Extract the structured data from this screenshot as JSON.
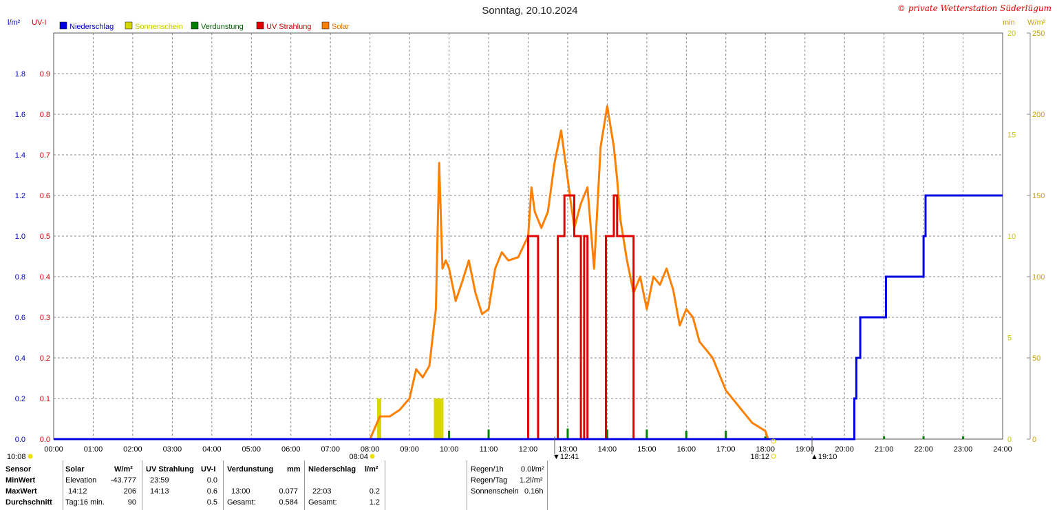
{
  "title": "Sonntag, 20.10.2024",
  "credit": "© private Wetterstation Süderlügum",
  "axis_units": {
    "left1": "l/m²",
    "left2": "UV-I",
    "right1": "min",
    "right2": "W/m²"
  },
  "legend": [
    {
      "label": "Niederschlag",
      "color": "#0000e0",
      "text_color": "#0000c0"
    },
    {
      "label": "Sonnenschein",
      "color": "#d8d800",
      "text_color": "#c8c800"
    },
    {
      "label": "Verdunstung",
      "color": "#008000",
      "text_color": "#006000"
    },
    {
      "label": "UV Strahlung",
      "color": "#e00000",
      "text_color": "#d00000"
    },
    {
      "label": "Solar",
      "color": "#ff8000",
      "text_color": "#e07000"
    }
  ],
  "colors": {
    "rain": "#0000e0",
    "sun": "#d8d800",
    "evap": "#008000",
    "uv": "#e00000",
    "solar": "#ff8000",
    "grid": "#888888"
  },
  "events": {
    "moonrise": "10:08",
    "sunrise": "08:04",
    "solar_noon": "12:41",
    "sunset": "18:12",
    "moonset": "19:10"
  },
  "chart_data": {
    "type": "line",
    "title": "Sonntag, 20.10.2024",
    "x_ticks": [
      "00:00",
      "01:00",
      "02:00",
      "03:00",
      "04:00",
      "05:00",
      "06:00",
      "07:00",
      "08:00",
      "09:00",
      "10:00",
      "11:00",
      "12:00",
      "13:00",
      "14:00",
      "15:00",
      "16:00",
      "17:00",
      "18:00",
      "19:00",
      "20:00",
      "21:00",
      "22:00",
      "23:00",
      "24:00"
    ],
    "axes": {
      "rain_lm2": {
        "range": [
          0,
          2.0
        ],
        "ticks": [
          "0.0",
          "0.2",
          "0.4",
          "0.6",
          "0.8",
          "1.0",
          "1.2",
          "1.4",
          "1.6",
          "1.8"
        ]
      },
      "uv_index": {
        "range": [
          0,
          1.0
        ],
        "ticks": [
          "0.0",
          "0.1",
          "0.2",
          "0.3",
          "0.4",
          "0.5",
          "0.6",
          "0.7",
          "0.8",
          "0.9"
        ]
      },
      "sunshine_min": {
        "range": [
          0,
          20
        ],
        "ticks": [
          "0",
          "5",
          "10",
          "15",
          "20"
        ]
      },
      "solar_wm2": {
        "range": [
          0,
          250
        ],
        "ticks": [
          "0",
          "50",
          "100",
          "150",
          "200",
          "250"
        ]
      }
    },
    "grid": true,
    "legend_position": "top",
    "series": [
      {
        "name": "Niederschlag",
        "unit": "l/m²",
        "x": [
          "00:00",
          "20:12",
          "20:15",
          "20:18",
          "20:24",
          "21:00",
          "21:03",
          "22:00",
          "22:03",
          "24:00"
        ],
        "y": [
          0.0,
          0.0,
          0.2,
          0.4,
          0.6,
          0.6,
          0.8,
          1.0,
          1.2,
          1.2
        ]
      },
      {
        "name": "Sonnenschein",
        "unit": "min",
        "x": [
          "08:14",
          "09:40"
        ],
        "y": [
          2,
          2
        ]
      },
      {
        "name": "Verdunstung",
        "unit": "mm",
        "x": [
          "10:00",
          "11:00",
          "12:00",
          "13:00",
          "14:00",
          "15:00",
          "16:00",
          "17:00",
          "18:00",
          "21:00",
          "22:00",
          "23:00"
        ],
        "y": [
          0.06,
          0.07,
          0.06,
          0.077,
          0.07,
          0.07,
          0.06,
          0.06,
          0.02,
          0.02,
          0.02,
          0.02
        ]
      },
      {
        "name": "UV Strahlung",
        "unit": "UV-I",
        "x": [
          "11:59",
          "12:00",
          "12:10",
          "12:15",
          "12:40",
          "12:45",
          "12:55",
          "13:10",
          "13:20",
          "13:25",
          "13:30",
          "13:35",
          "13:58",
          "14:05",
          "14:10",
          "14:15",
          "14:35",
          "14:40"
        ],
        "y": [
          0.0,
          0.5,
          0.5,
          0.0,
          0.0,
          0.5,
          0.6,
          0.5,
          0.0,
          0.5,
          0.0,
          0.0,
          0.5,
          0.5,
          0.6,
          0.5,
          0.5,
          0.0
        ]
      },
      {
        "name": "Solar",
        "unit": "W/m²",
        "x": [
          "08:00",
          "08:15",
          "08:30",
          "08:45",
          "09:00",
          "09:10",
          "09:20",
          "09:30",
          "09:40",
          "09:45",
          "09:50",
          "09:55",
          "10:00",
          "10:10",
          "10:20",
          "10:30",
          "10:40",
          "10:50",
          "11:00",
          "11:10",
          "11:20",
          "11:30",
          "11:45",
          "12:00",
          "12:05",
          "12:10",
          "12:15",
          "12:20",
          "12:30",
          "12:40",
          "12:50",
          "13:00",
          "13:10",
          "13:20",
          "13:30",
          "13:40",
          "13:50",
          "14:00",
          "14:10",
          "14:15",
          "14:20",
          "14:30",
          "14:40",
          "14:50",
          "15:00",
          "15:10",
          "15:20",
          "15:30",
          "15:40",
          "15:50",
          "16:00",
          "16:10",
          "16:20",
          "16:30",
          "16:40",
          "17:00",
          "17:20",
          "17:40",
          "18:00",
          "18:04"
        ],
        "y": [
          0,
          14,
          14,
          18,
          25,
          43,
          38,
          45,
          80,
          170,
          105,
          110,
          105,
          85,
          97,
          110,
          90,
          77,
          80,
          105,
          115,
          110,
          112,
          125,
          155,
          140,
          135,
          130,
          140,
          170,
          190,
          160,
          130,
          145,
          155,
          105,
          180,
          205,
          180,
          160,
          135,
          110,
          90,
          100,
          80,
          100,
          95,
          105,
          92,
          70,
          80,
          75,
          60,
          55,
          50,
          30,
          20,
          10,
          5,
          0
        ]
      }
    ]
  },
  "stats": {
    "headers": {
      "sensor": "Sensor",
      "solar": "Solar",
      "solar_unit": "W/m²",
      "uv": "UV Strahlung",
      "uv_unit": "UV-I",
      "evap": "Verdunstung",
      "evap_unit": "mm",
      "rain": "Niederschlag",
      "rain_unit": "l/m²"
    },
    "rows": [
      {
        "label": "MinWert",
        "solar_t": "Elevation",
        "solar_v": "-43.777",
        "uv_t": "23:59",
        "uv_v": "0.0",
        "evap_t": "",
        "evap_v": "",
        "rain_t": "",
        "rain_v": ""
      },
      {
        "label": "MaxWert",
        "solar_t": "14:12",
        "solar_v": "206",
        "uv_t": "14:13",
        "uv_v": "0.6",
        "evap_t": "13:00",
        "evap_v": "0.077",
        "rain_t": "22:03",
        "rain_v": "0.2"
      },
      {
        "label": "Durchschnitt",
        "solar_t": "Tag:16 min.",
        "solar_v": "90",
        "uv_t": "",
        "uv_v": "0.5",
        "evap_t": "Gesamt:",
        "evap_v": "0.584",
        "rain_t": "Gesamt:",
        "rain_v": "1.2"
      }
    ],
    "summary": [
      {
        "label": "Regen/1h",
        "value": "0.0l/m²"
      },
      {
        "label": "Regen/Tag",
        "value": "1.2l/m²"
      },
      {
        "label": "Sonnenschein",
        "value": "0.16h"
      }
    ]
  }
}
